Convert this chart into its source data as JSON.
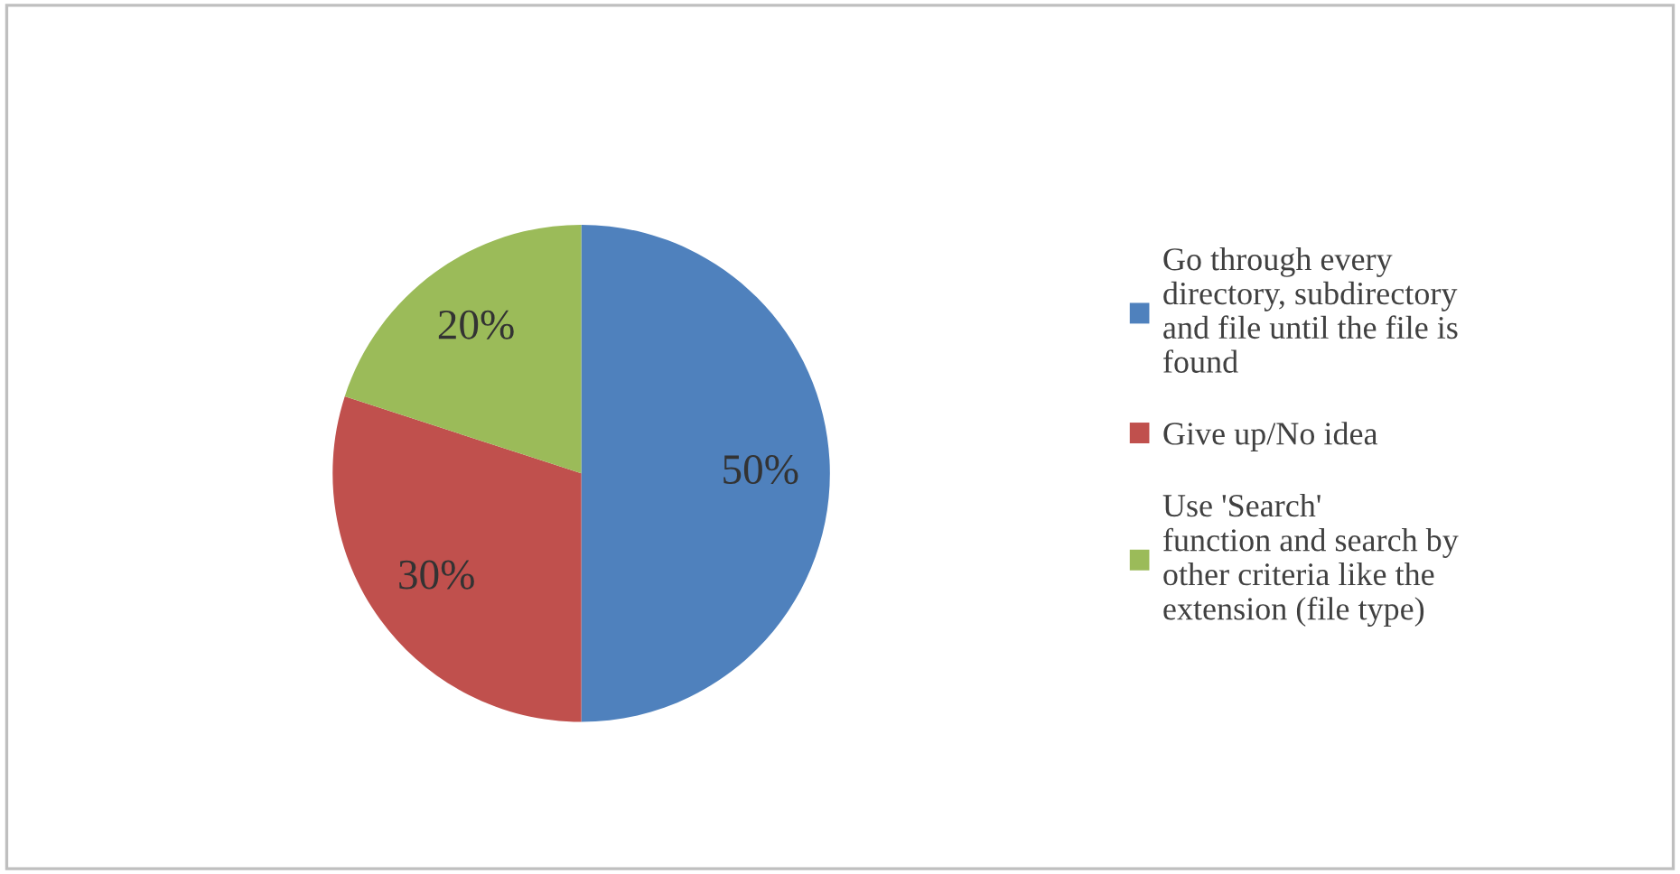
{
  "chart_data": {
    "type": "pie",
    "categories": [
      "Go through every\ndirectory, subdirectory\nand file until the file is\nfound",
      "Give up/No idea",
      "Use 'Search'\nfunction and search by\nother criteria like the\nextension (file type)"
    ],
    "values": [
      50,
      30,
      20
    ],
    "colors": [
      "#4f81bd",
      "#c0504d",
      "#9bbb59"
    ],
    "value_labels": [
      "50%",
      "30%",
      "20%"
    ],
    "legend": "right"
  }
}
